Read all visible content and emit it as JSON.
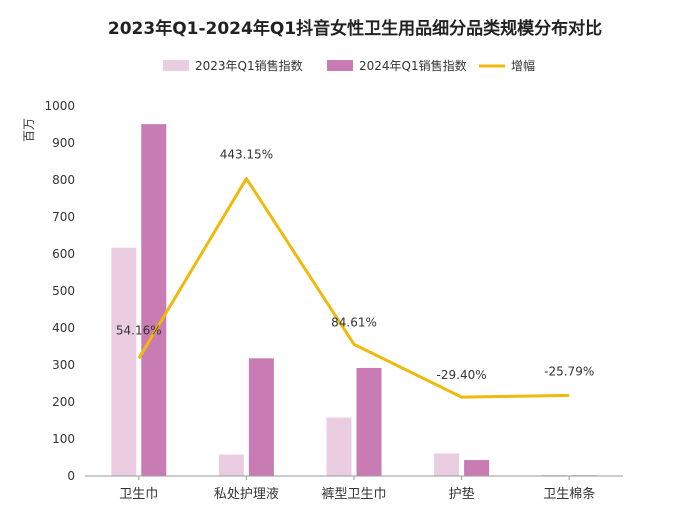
{
  "chart_data": {
    "type": "bar",
    "title": "2023年Q1-2024年Q1抖音女性卫生用品细分品类规模分布对比",
    "ylabel": "百万",
    "ylim": [
      0,
      1000
    ],
    "yticks": [
      0,
      100,
      200,
      300,
      400,
      500,
      600,
      700,
      800,
      900,
      1000
    ],
    "categories": [
      "卫生巾",
      "私处护理液",
      "裤型卫生巾",
      "护垫",
      "卫生棉条"
    ],
    "series": [
      {
        "name": "2023年Q1销售指数",
        "type": "bar",
        "color": "#ebcde2",
        "values": [
          617,
          58,
          158,
          61,
          3
        ]
      },
      {
        "name": "2024年Q1销售指数",
        "type": "bar",
        "color": "#c97bb3",
        "values": [
          951,
          318,
          292,
          43,
          2
        ]
      },
      {
        "name": "增幅",
        "type": "line",
        "color": "#f0b90d",
        "values": [
          54.16,
          443.15,
          84.61,
          -29.4,
          -25.79
        ],
        "labels": [
          "54.16%",
          "443.15%",
          "84.61%",
          "-29.40%",
          "-25.79%"
        ]
      }
    ],
    "legend_position": "top-center",
    "grid": false
  }
}
